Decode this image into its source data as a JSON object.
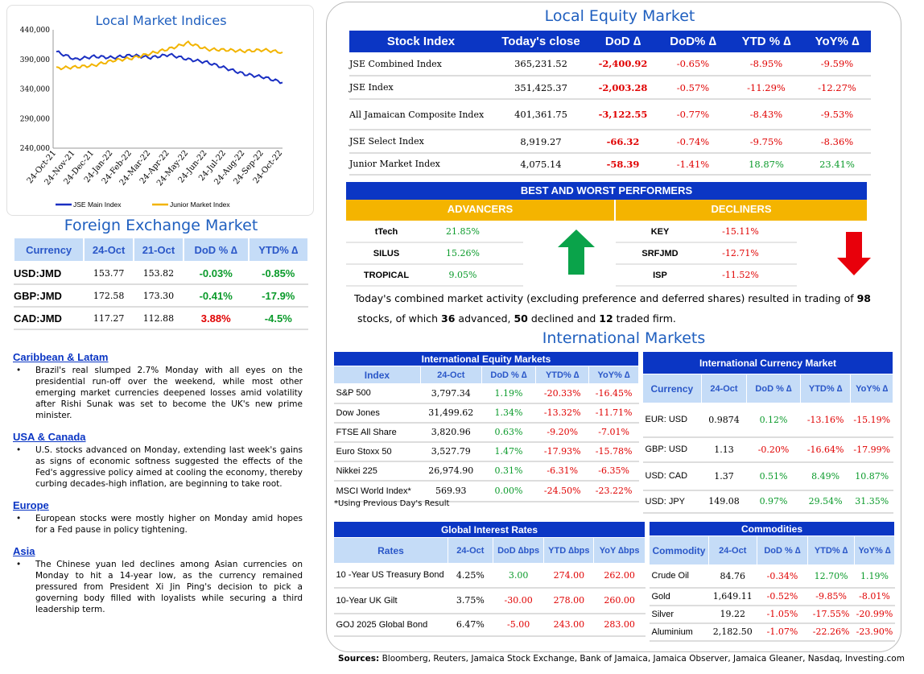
{
  "chart": {
    "title": "Local Market Indices",
    "y_ticks": [
      "440,000",
      "390,000",
      "340,000",
      "290,000",
      "240,000"
    ],
    "x_ticks": [
      "24-Oct-21",
      "24-Nov-21",
      "24-Dec-21",
      "24-Jan-22",
      "24-Feb-22",
      "24-Mar-22",
      "24-Apr-22",
      "24-May-22",
      "24-Jun-22",
      "24-Jul-22",
      "24-Aug-22",
      "24-Sep-22",
      "24-Oct-22"
    ],
    "legend_main": "JSE Main Index",
    "legend_junior": "Junior Market Index",
    "color_main": "#1a2fc2",
    "color_junior": "#f2b400"
  },
  "chart_data": {
    "type": "line",
    "title": "Local Market Indices",
    "x": [
      "24-Oct-21",
      "24-Nov-21",
      "24-Dec-21",
      "24-Jan-22",
      "24-Feb-22",
      "24-Mar-22",
      "24-Apr-22",
      "24-May-22",
      "24-Jun-22",
      "24-Jul-22",
      "24-Aug-22",
      "24-Sep-22",
      "24-Oct-22"
    ],
    "ylim": [
      240000,
      440000
    ],
    "series": [
      {
        "name": "JSE Main Index",
        "values": [
          403000,
          390000,
          395000,
          393000,
          397000,
          393000,
          398000,
          390000,
          385000,
          375000,
          365000,
          360000,
          351000
        ]
      },
      {
        "name": "Junior Market Index",
        "values": [
          375000,
          377000,
          380000,
          388000,
          392000,
          400000,
          408000,
          418000,
          407000,
          406000,
          404000,
          406000,
          402000
        ]
      }
    ],
    "legend": "bottom"
  },
  "fx": {
    "title": "Foreign Exchange Market",
    "headers": [
      "Currency",
      "24-Oct",
      "21-Oct",
      "DoD % ∆",
      "YTD% ∆"
    ],
    "rows": [
      {
        "c": "USD:JMD",
        "a": "153.77",
        "b": "153.82",
        "d": "-0.03%",
        "y": "-0.85%",
        "dcol": "green",
        "ycol": "green"
      },
      {
        "c": "GBP:JMD",
        "a": "172.58",
        "b": "173.30",
        "d": "-0.41%",
        "y": "-17.9%",
        "dcol": "green",
        "ycol": "green"
      },
      {
        "c": "CAD:JMD",
        "a": "117.27",
        "b": "112.88",
        "d": "3.88%",
        "y": "-4.5%",
        "dcol": "red",
        "ycol": "green"
      }
    ]
  },
  "news": [
    {
      "h": "Caribbean & Latam",
      "p": "Brazil's real slumped 2.7% Monday with all eyes on the presidential run-off over the weekend, while most other emerging market currencies deepened losses amid volatility after Rishi Sunak was set to become the UK's new prime minister."
    },
    {
      "h": "USA & Canada",
      "p": "U.S. stocks advanced on Monday, extending last week's gains as signs of economic softness suggested the effects of the Fed's aggressive policy aimed at cooling the economy, thereby curbing decades-high inflation, are beginning to take root."
    },
    {
      "h": "Europe",
      "p": "European stocks were mostly higher on Monday amid hopes for a Fed pause in policy tightening."
    },
    {
      "h": "Asia",
      "p": "The Chinese yuan led declines among Asian currencies on Monday to hit a 14-year low, as the currency remained pressured from President Xi Jin Ping's decision to pick a governing body filled with loyalists while securing a third leadership term."
    }
  ],
  "equity": {
    "title": "Local Equity Market",
    "headers": [
      "Stock Index",
      "Today's close",
      "DoD  ∆",
      "DoD% ∆",
      "YTD % ∆",
      "YoY% ∆"
    ],
    "rows": [
      {
        "n": "JSE Combined Index",
        "v": "365,231.52",
        "d": "-2,400.92",
        "dp": "-0.65%",
        "y": "-8.95%",
        "yy": "-9.59%",
        "dc": "red",
        "dpc": "red",
        "yc": "red",
        "yyc": "red"
      },
      {
        "n": "JSE Index",
        "v": "351,425.37",
        "d": "-2,003.28",
        "dp": "-0.57%",
        "y": "-11.29%",
        "yy": "-12.27%",
        "dc": "red",
        "dpc": "red",
        "yc": "red",
        "yyc": "red"
      },
      {
        "n": "All Jamaican Composite Index",
        "v": "401,361.75",
        "d": "-3,122.55",
        "dp": "-0.77%",
        "y": "-8.43%",
        "yy": "-9.53%",
        "dc": "red",
        "dpc": "red",
        "yc": "red",
        "yyc": "red"
      },
      {
        "n": "JSE Select Index",
        "v": "8,919.27",
        "d": "-66.32",
        "dp": "-0.74%",
        "y": "-9.75%",
        "yy": "-8.36%",
        "dc": "red",
        "dpc": "red",
        "yc": "red",
        "yyc": "red"
      },
      {
        "n": "Junior Market Index",
        "v": "4,075.14",
        "d": "-58.39",
        "dp": "-1.41%",
        "y": "18.87%",
        "yy": "23.41%",
        "dc": "red",
        "dpc": "red",
        "yc": "green",
        "yyc": "green"
      }
    ]
  },
  "performers": {
    "title": "BEST AND WORST PERFORMERS",
    "adv_label": "ADVANCERS",
    "dec_label": "DECLINERS",
    "advancers": [
      {
        "n": "tTech",
        "v": "21.85%"
      },
      {
        "n": "SILUS",
        "v": "15.26%"
      },
      {
        "n": "TROPICAL",
        "v": "9.05%"
      }
    ],
    "decliners": [
      {
        "n": "KEY",
        "v": "-15.11%"
      },
      {
        "n": "SRFJMD",
        "v": "-12.71%"
      },
      {
        "n": "ISP",
        "v": "-11.52%"
      }
    ]
  },
  "summary": {
    "t1": "Today's combined market activity (excluding preference and deferred shares) resulted in trading of ",
    "n1": "98",
    "t2": "stocks, of which ",
    "n2": "36",
    "t3": " advanced, ",
    "n3": "50",
    "t4": " declined and ",
    "n4": "12",
    "t5": " traded firm."
  },
  "intl_title": "International Markets",
  "ieq": {
    "title": "International Equity Markets",
    "headers": [
      "Index",
      "24-Oct",
      "DoD % ∆",
      "YTD% ∆",
      "YoY% ∆"
    ],
    "rows": [
      {
        "n": "S&P 500",
        "v": "3,797.34",
        "d": "1.19%",
        "y": "-20.33%",
        "yy": "-16.45%",
        "dc": "green"
      },
      {
        "n": "Dow Jones",
        "v": "31,499.62",
        "d": "1.34%",
        "y": "-13.32%",
        "yy": "-11.71%",
        "dc": "green"
      },
      {
        "n": "FTSE All Share",
        "v": "3,820.96",
        "d": "0.63%",
        "y": "-9.20%",
        "yy": "-7.01%",
        "dc": "green"
      },
      {
        "n": "Euro Stoxx 50",
        "v": "3,527.79",
        "d": "1.47%",
        "y": "-17.93%",
        "yy": "-15.78%",
        "dc": "green"
      },
      {
        "n": "Nikkei 225",
        "v": "26,974.90",
        "d": "0.31%",
        "y": "-6.31%",
        "yy": "-6.35%",
        "dc": "green"
      },
      {
        "n": "MSCI World Index*",
        "v": "569.93",
        "d": "0.00%",
        "y": "-24.50%",
        "yy": "-23.22%",
        "dc": "green"
      }
    ],
    "note": "*Using Previous Day's Result"
  },
  "icur": {
    "title": "International Currency Market",
    "headers": [
      "Currency",
      "24-Oct",
      "DoD % ∆",
      "YTD% ∆",
      "YoY% ∆"
    ],
    "rows": [
      {
        "n": "EUR: USD",
        "v": "0.9874",
        "d": "0.12%",
        "y": "-13.16%",
        "yy": "-15.19%",
        "dc": "green",
        "yc": "red",
        "yyc": "red"
      },
      {
        "n": "GBP: USD",
        "v": "1.13",
        "d": "-0.20%",
        "y": "-16.64%",
        "yy": "-17.99%",
        "dc": "red",
        "yc": "red",
        "yyc": "red"
      },
      {
        "n": "USD: CAD",
        "v": "1.37",
        "d": "0.51%",
        "y": "8.49%",
        "yy": "10.87%",
        "dc": "green",
        "yc": "green",
        "yyc": "green"
      },
      {
        "n": "USD: JPY",
        "v": "149.08",
        "d": "0.97%",
        "y": "29.54%",
        "yy": "31.35%",
        "dc": "green",
        "yc": "green",
        "yyc": "green"
      }
    ]
  },
  "rates": {
    "title": "Global Interest Rates",
    "headers": [
      "Rates",
      "24-Oct",
      "DoD ∆bps",
      "YTD ∆bps",
      "YoY ∆bps"
    ],
    "rows": [
      {
        "n": "10 -Year US Treasury Bond",
        "v": "4.25%",
        "d": "3.00",
        "y": "274.00",
        "yy": "262.00",
        "dc": "green"
      },
      {
        "n": "10-Year UK Gilt",
        "v": "3.75%",
        "d": "-30.00",
        "y": "278.00",
        "yy": "260.00",
        "dc": "red"
      },
      {
        "n": "GOJ 2025 Global Bond",
        "v": "6.47%",
        "d": "-5.00",
        "y": "243.00",
        "yy": "283.00",
        "dc": "red"
      }
    ]
  },
  "comm": {
    "title": "Commodities",
    "headers": [
      "Commodity",
      "24-Oct",
      "DoD % ∆",
      "YTD% ∆",
      "YoY% ∆"
    ],
    "rows": [
      {
        "n": "Crude Oil",
        "v": "84.76",
        "d": "-0.34%",
        "y": "12.70%",
        "yy": "1.19%",
        "yc": "green",
        "yyc": "green"
      },
      {
        "n": "Gold",
        "v": "1,649.11",
        "d": "-0.52%",
        "y": "-9.85%",
        "yy": "-8.01%",
        "yc": "red",
        "yyc": "red"
      },
      {
        "n": "Silver",
        "v": "19.22",
        "d": "-1.05%",
        "y": "-17.55%",
        "yy": "-20.99%",
        "yc": "red",
        "yyc": "red"
      },
      {
        "n": "Aluminium",
        "v": "2,182.50",
        "d": "-1.07%",
        "y": "-22.26%",
        "yy": "-23.90%",
        "yc": "red",
        "yyc": "red"
      }
    ]
  },
  "sources": {
    "label": "Sources:",
    "text": " Bloomberg, Reuters, Jamaica Stock Exchange, Bank of Jamaica, Jamaica Observer, Jamaica Gleaner, Nasdaq, Investing.com"
  }
}
